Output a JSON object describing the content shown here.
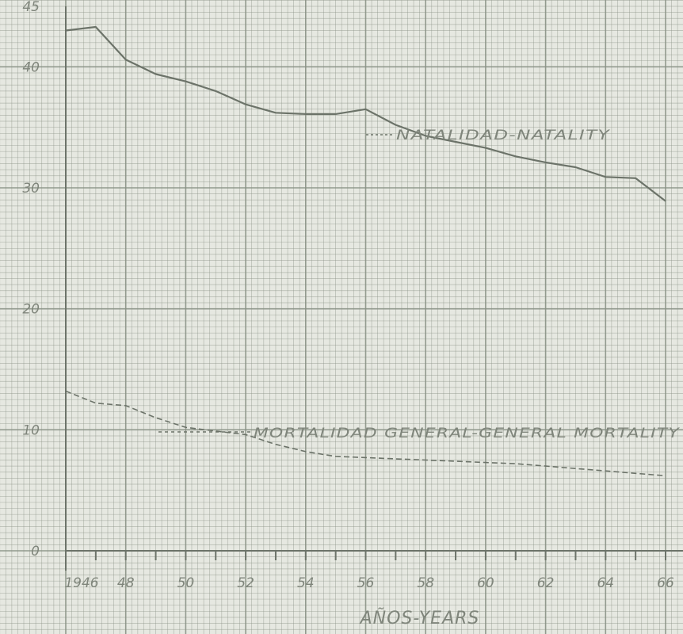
{
  "chart_data": {
    "type": "line",
    "title": "",
    "xlabel": "AÑOS-YEARS",
    "ylabel": "",
    "xlim": [
      1946,
      1966
    ],
    "ylim": [
      0,
      45
    ],
    "grid": true,
    "x_tick_labels": [
      {
        "x": 1946,
        "label": "1946"
      },
      {
        "x": 1948,
        "label": "48"
      },
      {
        "x": 1950,
        "label": "50"
      },
      {
        "x": 1952,
        "label": "52"
      },
      {
        "x": 1954,
        "label": "54"
      },
      {
        "x": 1956,
        "label": "56"
      },
      {
        "x": 1958,
        "label": "58"
      },
      {
        "x": 1960,
        "label": "60"
      },
      {
        "x": 1962,
        "label": "62"
      },
      {
        "x": 1964,
        "label": "64"
      },
      {
        "x": 1966,
        "label": "66"
      }
    ],
    "y_tick_labels": [
      {
        "y": 0,
        "label": "0"
      },
      {
        "y": 10,
        "label": "10"
      },
      {
        "y": 20,
        "label": "20"
      },
      {
        "y": 30,
        "label": "30"
      },
      {
        "y": 40,
        "label": "40"
      },
      {
        "y": 45,
        "label": "45"
      }
    ],
    "series": [
      {
        "name": "NATALIDAD-NATALITY",
        "style": "solid",
        "x": [
          1946,
          1947,
          1948,
          1949,
          1950,
          1951,
          1952,
          1953,
          1954,
          1955,
          1956,
          1957,
          1958,
          1959,
          1960,
          1961,
          1962,
          1963,
          1964,
          1965,
          1966
        ],
        "y": [
          43.0,
          43.3,
          40.6,
          39.4,
          38.8,
          38.0,
          36.9,
          36.2,
          36.1,
          36.1,
          36.5,
          35.2,
          34.3,
          33.8,
          33.3,
          32.6,
          32.1,
          31.7,
          30.9,
          30.8,
          28.9
        ]
      },
      {
        "name": "MORTALIDAD GENERAL-GENERAL MORTALITY",
        "style": "dashed",
        "x": [
          1946,
          1947,
          1948,
          1949,
          1950,
          1951,
          1952,
          1953,
          1954,
          1955,
          1956,
          1957,
          1958,
          1959,
          1960,
          1961,
          1962,
          1963,
          1964,
          1965,
          1966
        ],
        "y": [
          13.2,
          12.2,
          12.0,
          11.0,
          10.2,
          9.9,
          9.6,
          8.8,
          8.2,
          7.8,
          7.7,
          7.6,
          7.5,
          7.4,
          7.3,
          7.2,
          7.0,
          6.8,
          6.6,
          6.4,
          6.2
        ]
      }
    ]
  }
}
